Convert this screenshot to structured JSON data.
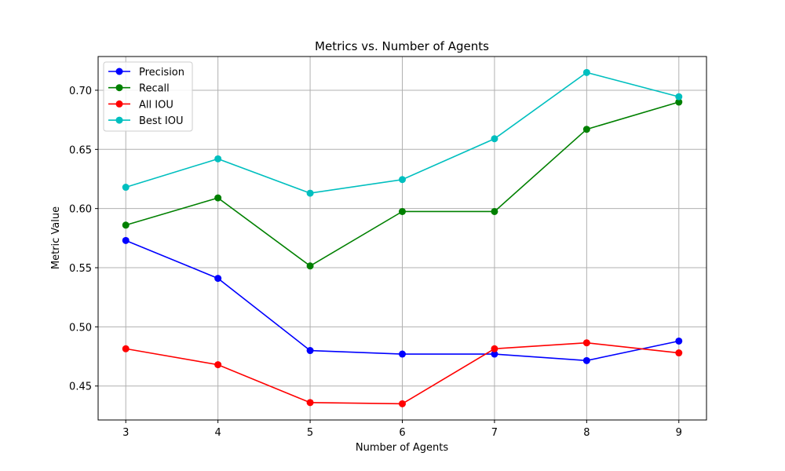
{
  "chart_data": {
    "type": "line",
    "title": "Metrics vs. Number of Agents",
    "xlabel": "Number of Agents",
    "ylabel": "Metric Value",
    "x": [
      3,
      4,
      5,
      6,
      7,
      8,
      9
    ],
    "xlim": [
      2.7,
      9.3
    ],
    "ylim": [
      0.4213,
      0.7285
    ],
    "xticks": [
      "3",
      "4",
      "5",
      "6",
      "7",
      "8",
      "9"
    ],
    "yticks": [
      {
        "value": 0.45,
        "label": "0.45"
      },
      {
        "value": 0.5,
        "label": "0.50"
      },
      {
        "value": 0.55,
        "label": "0.55"
      },
      {
        "value": 0.6,
        "label": "0.60"
      },
      {
        "value": 0.65,
        "label": "0.65"
      },
      {
        "value": 0.7,
        "label": "0.70"
      }
    ],
    "grid": true,
    "legend_position": "upper-left",
    "series": [
      {
        "name": "Precision",
        "color": "#0000ff",
        "values": [
          0.573,
          0.541,
          0.48,
          0.477,
          0.477,
          0.4715,
          0.488
        ]
      },
      {
        "name": "Recall",
        "color": "#008000",
        "values": [
          0.586,
          0.609,
          0.5515,
          0.5975,
          0.5975,
          0.667,
          0.69
        ]
      },
      {
        "name": "All IOU",
        "color": "#ff0000",
        "values": [
          0.4815,
          0.468,
          0.436,
          0.435,
          0.4815,
          0.4865,
          0.478
        ]
      },
      {
        "name": "Best IOU",
        "color": "#00bfbf",
        "values": [
          0.618,
          0.642,
          0.613,
          0.6245,
          0.659,
          0.715,
          0.6945
        ]
      }
    ]
  }
}
